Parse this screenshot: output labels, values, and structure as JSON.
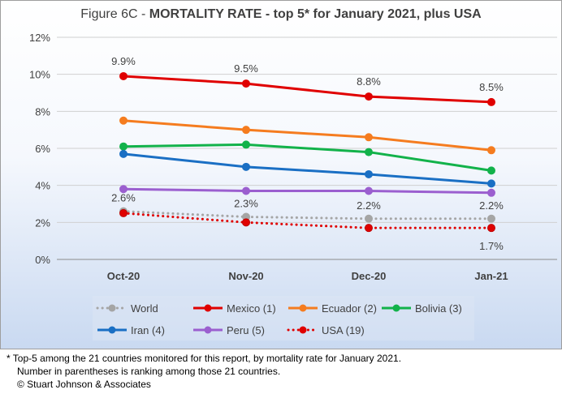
{
  "chart_data": {
    "type": "line",
    "title_prefix": "Figure 6C  - ",
    "title_bold": "MORTALITY RATE - top 5* for January 2021, plus USA",
    "categories": [
      "Oct-20",
      "Nov-20",
      "Dec-20",
      "Jan-21"
    ],
    "y_ticks": [
      "0%",
      "2%",
      "4%",
      "6%",
      "8%",
      "10%",
      "12%"
    ],
    "ylim": [
      0,
      12
    ],
    "grid": true,
    "legend_position": "bottom",
    "series": [
      {
        "name": "World",
        "values": [
          2.6,
          2.3,
          2.2,
          2.2
        ],
        "color": "#a5a5a5",
        "dotted": true,
        "labels": [
          "2.6%",
          "2.3%",
          "2.2%",
          "2.2%"
        ]
      },
      {
        "name": "Mexico (1)",
        "values": [
          9.9,
          9.5,
          8.8,
          8.5
        ],
        "color": "#e00000",
        "dotted": false,
        "labels": [
          "9.9%",
          "9.5%",
          "8.8%",
          "8.5%"
        ]
      },
      {
        "name": "Ecuador (2)",
        "values": [
          7.5,
          7.0,
          6.6,
          5.9
        ],
        "color": "#f57c1f",
        "dotted": false
      },
      {
        "name": "Bolivia (3)",
        "values": [
          6.1,
          6.2,
          5.8,
          4.8
        ],
        "color": "#12b24a",
        "dotted": false
      },
      {
        "name": "Iran (4)",
        "values": [
          5.7,
          5.0,
          4.6,
          4.1
        ],
        "color": "#1a6fc4",
        "dotted": false
      },
      {
        "name": "Peru (5)",
        "values": [
          3.8,
          3.7,
          3.7,
          3.6
        ],
        "color": "#9b5fcf",
        "dotted": false
      },
      {
        "name": "USA (19)",
        "values": [
          2.5,
          2.0,
          1.7,
          1.7
        ],
        "color": "#e00000",
        "dotted": true,
        "labels": [
          "",
          "",
          "",
          "1.7%"
        ]
      }
    ]
  },
  "footnote": {
    "line1": "* Top-5 among the 21 countries monitored for this report, by mortality rate for January 2021.",
    "line2": "Number in parentheses is ranking among those 21 countries.",
    "line3": "© Stuart Johnson & Associates"
  }
}
